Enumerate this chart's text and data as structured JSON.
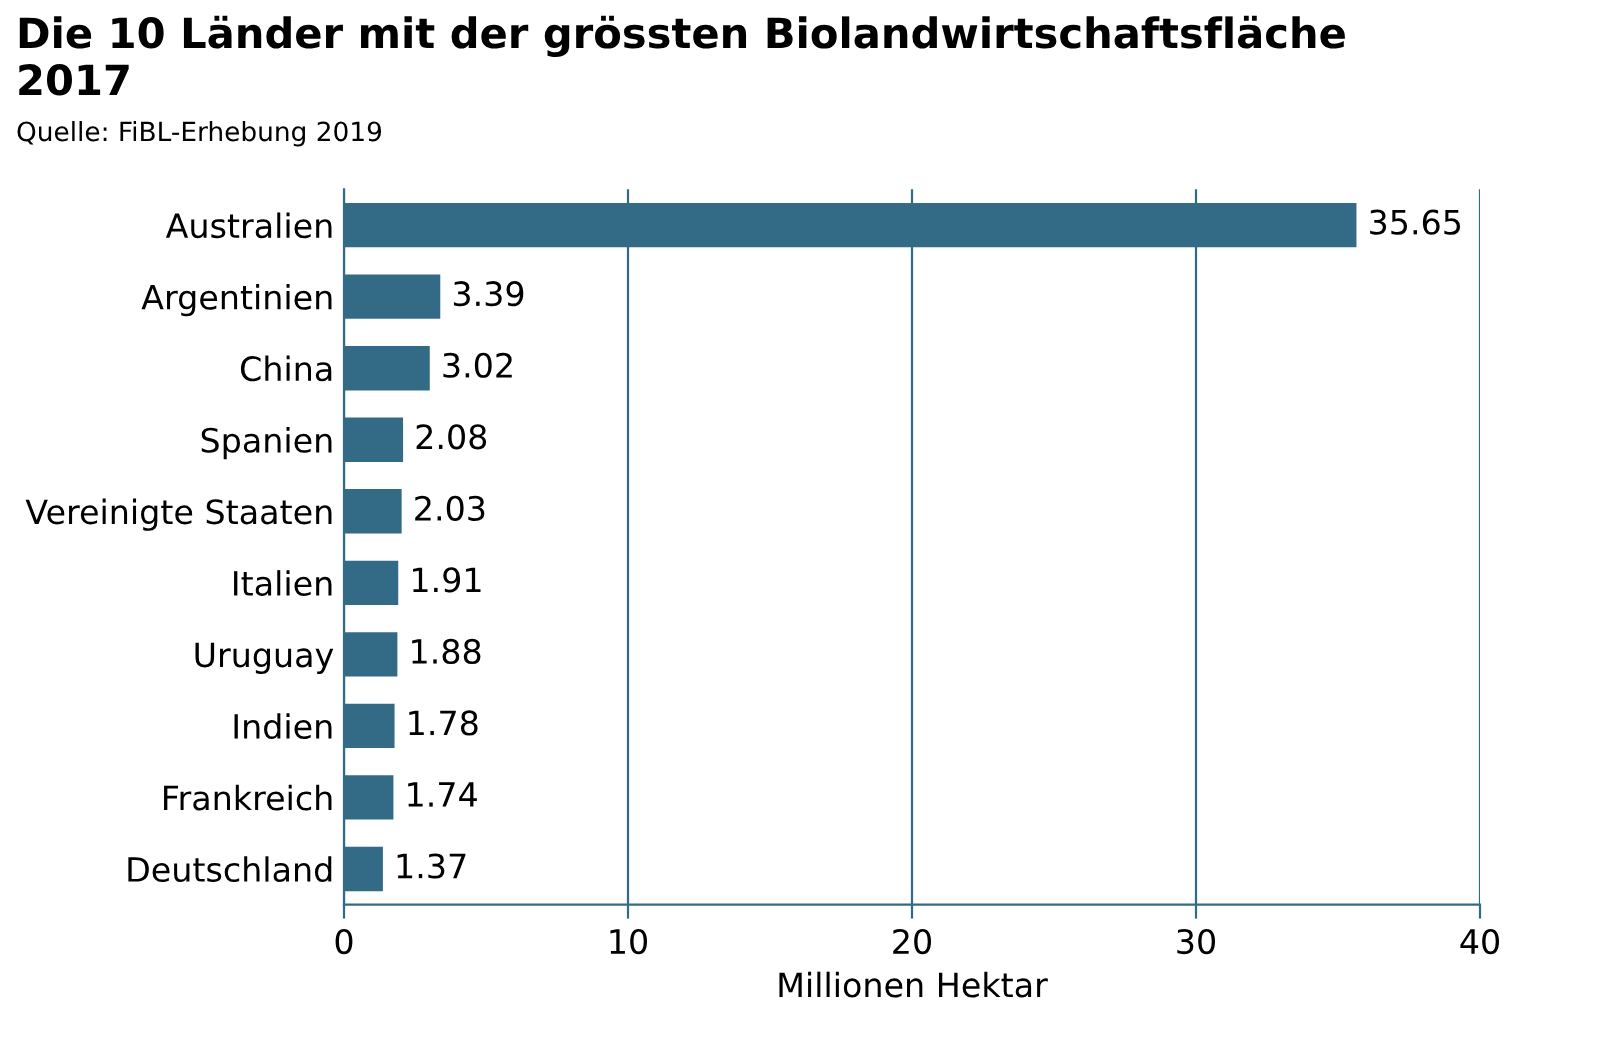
{
  "chart_data": {
    "type": "bar",
    "orientation": "horizontal",
    "title": "Die 10 Länder mit der grössten Biolandwirtschaftsfläche\n2017",
    "annotations": [
      "Quelle: FiBL-Erhebung 2019"
    ],
    "categories": [
      "Australien",
      "Argentinien",
      "China",
      "Spanien",
      "Vereinigte Staaten",
      "Italien",
      "Uruguay",
      "Indien",
      "Frankreich",
      "Deutschland"
    ],
    "values": [
      35.65,
      3.39,
      3.02,
      2.08,
      2.03,
      1.91,
      1.88,
      1.78,
      1.74,
      1.37
    ],
    "color": "#336b87",
    "data_labels": true,
    "xlabel": "Millionen Hektar",
    "xlim": [
      0,
      40
    ],
    "xticks": [
      0,
      10,
      20,
      30,
      40
    ],
    "grid": "x"
  }
}
